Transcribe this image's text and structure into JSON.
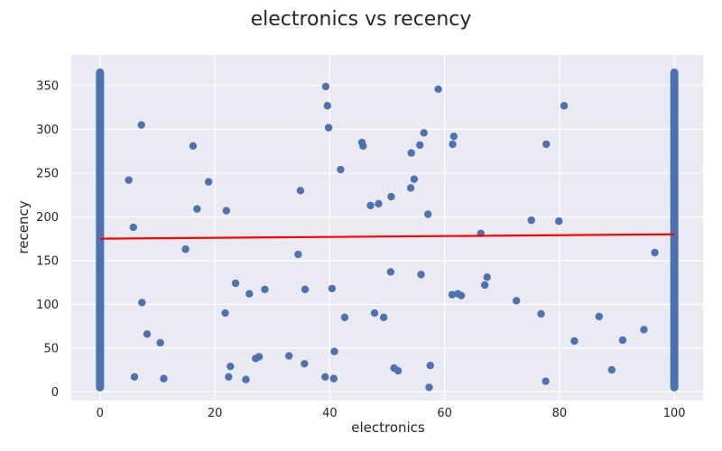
{
  "chart_data": {
    "type": "scatter",
    "title": "electronics vs recency",
    "xlabel": "electronics",
    "ylabel": "recency",
    "xlim": [
      -5,
      105
    ],
    "ylim": [
      -10,
      385
    ],
    "xticks": [
      0,
      20,
      40,
      60,
      80,
      100
    ],
    "yticks": [
      0,
      50,
      100,
      150,
      200,
      250,
      300,
      350
    ],
    "grid": true,
    "colors": {
      "background": "#eaeaf2",
      "grid": "#ffffff",
      "points": "#4c72b0",
      "trend": "#ff0000"
    },
    "vertical_bands": [
      {
        "x": 0,
        "y_min": 5,
        "y_max": 365
      },
      {
        "x": 100,
        "y_min": 5,
        "y_max": 365
      }
    ],
    "points": [
      {
        "x": 5,
        "y": 242
      },
      {
        "x": 5.8,
        "y": 188
      },
      {
        "x": 6,
        "y": 17
      },
      {
        "x": 7.2,
        "y": 305
      },
      {
        "x": 7.3,
        "y": 102
      },
      {
        "x": 8.2,
        "y": 66
      },
      {
        "x": 10.5,
        "y": 56
      },
      {
        "x": 11.1,
        "y": 15
      },
      {
        "x": 14.9,
        "y": 163
      },
      {
        "x": 16.2,
        "y": 281
      },
      {
        "x": 16.9,
        "y": 209
      },
      {
        "x": 18.9,
        "y": 240
      },
      {
        "x": 21.8,
        "y": 90
      },
      {
        "x": 22,
        "y": 207
      },
      {
        "x": 22.4,
        "y": 17
      },
      {
        "x": 22.7,
        "y": 29
      },
      {
        "x": 23.6,
        "y": 124
      },
      {
        "x": 25.4,
        "y": 14
      },
      {
        "x": 26,
        "y": 112
      },
      {
        "x": 27.1,
        "y": 38
      },
      {
        "x": 27.7,
        "y": 40
      },
      {
        "x": 28.7,
        "y": 117
      },
      {
        "x": 32.9,
        "y": 41
      },
      {
        "x": 34.5,
        "y": 157
      },
      {
        "x": 34.9,
        "y": 230
      },
      {
        "x": 35.7,
        "y": 117
      },
      {
        "x": 35.6,
        "y": 32
      },
      {
        "x": 39.2,
        "y": 17
      },
      {
        "x": 39.3,
        "y": 349
      },
      {
        "x": 39.6,
        "y": 327
      },
      {
        "x": 39.8,
        "y": 302
      },
      {
        "x": 40.4,
        "y": 118
      },
      {
        "x": 40.7,
        "y": 15
      },
      {
        "x": 40.8,
        "y": 46
      },
      {
        "x": 41.9,
        "y": 254
      },
      {
        "x": 42.6,
        "y": 85
      },
      {
        "x": 45.6,
        "y": 285
      },
      {
        "x": 45.8,
        "y": 281
      },
      {
        "x": 47.1,
        "y": 213
      },
      {
        "x": 47.8,
        "y": 90
      },
      {
        "x": 48.5,
        "y": 215
      },
      {
        "x": 49.4,
        "y": 85
      },
      {
        "x": 50.6,
        "y": 137
      },
      {
        "x": 50.7,
        "y": 223
      },
      {
        "x": 51.2,
        "y": 27
      },
      {
        "x": 51.9,
        "y": 24
      },
      {
        "x": 54.1,
        "y": 233
      },
      {
        "x": 54.2,
        "y": 273
      },
      {
        "x": 54.7,
        "y": 243
      },
      {
        "x": 55.7,
        "y": 282
      },
      {
        "x": 55.9,
        "y": 134
      },
      {
        "x": 56.4,
        "y": 296
      },
      {
        "x": 57.1,
        "y": 203
      },
      {
        "x": 57.3,
        "y": 5
      },
      {
        "x": 57.5,
        "y": 30
      },
      {
        "x": 58.9,
        "y": 346
      },
      {
        "x": 61.3,
        "y": 111
      },
      {
        "x": 61.4,
        "y": 283
      },
      {
        "x": 61.6,
        "y": 292
      },
      {
        "x": 62.3,
        "y": 112
      },
      {
        "x": 62.9,
        "y": 110
      },
      {
        "x": 66.3,
        "y": 181
      },
      {
        "x": 67,
        "y": 122
      },
      {
        "x": 67.4,
        "y": 131
      },
      {
        "x": 72.5,
        "y": 104
      },
      {
        "x": 75.1,
        "y": 196
      },
      {
        "x": 76.8,
        "y": 89
      },
      {
        "x": 77.6,
        "y": 12
      },
      {
        "x": 77.7,
        "y": 283
      },
      {
        "x": 79.9,
        "y": 195
      },
      {
        "x": 80.8,
        "y": 327
      },
      {
        "x": 82.6,
        "y": 58
      },
      {
        "x": 86.9,
        "y": 86
      },
      {
        "x": 89.1,
        "y": 25
      },
      {
        "x": 91,
        "y": 59
      },
      {
        "x": 94.7,
        "y": 71
      },
      {
        "x": 96.6,
        "y": 159
      }
    ],
    "trend_line": {
      "x": [
        0,
        100
      ],
      "y": [
        175,
        180
      ]
    }
  }
}
